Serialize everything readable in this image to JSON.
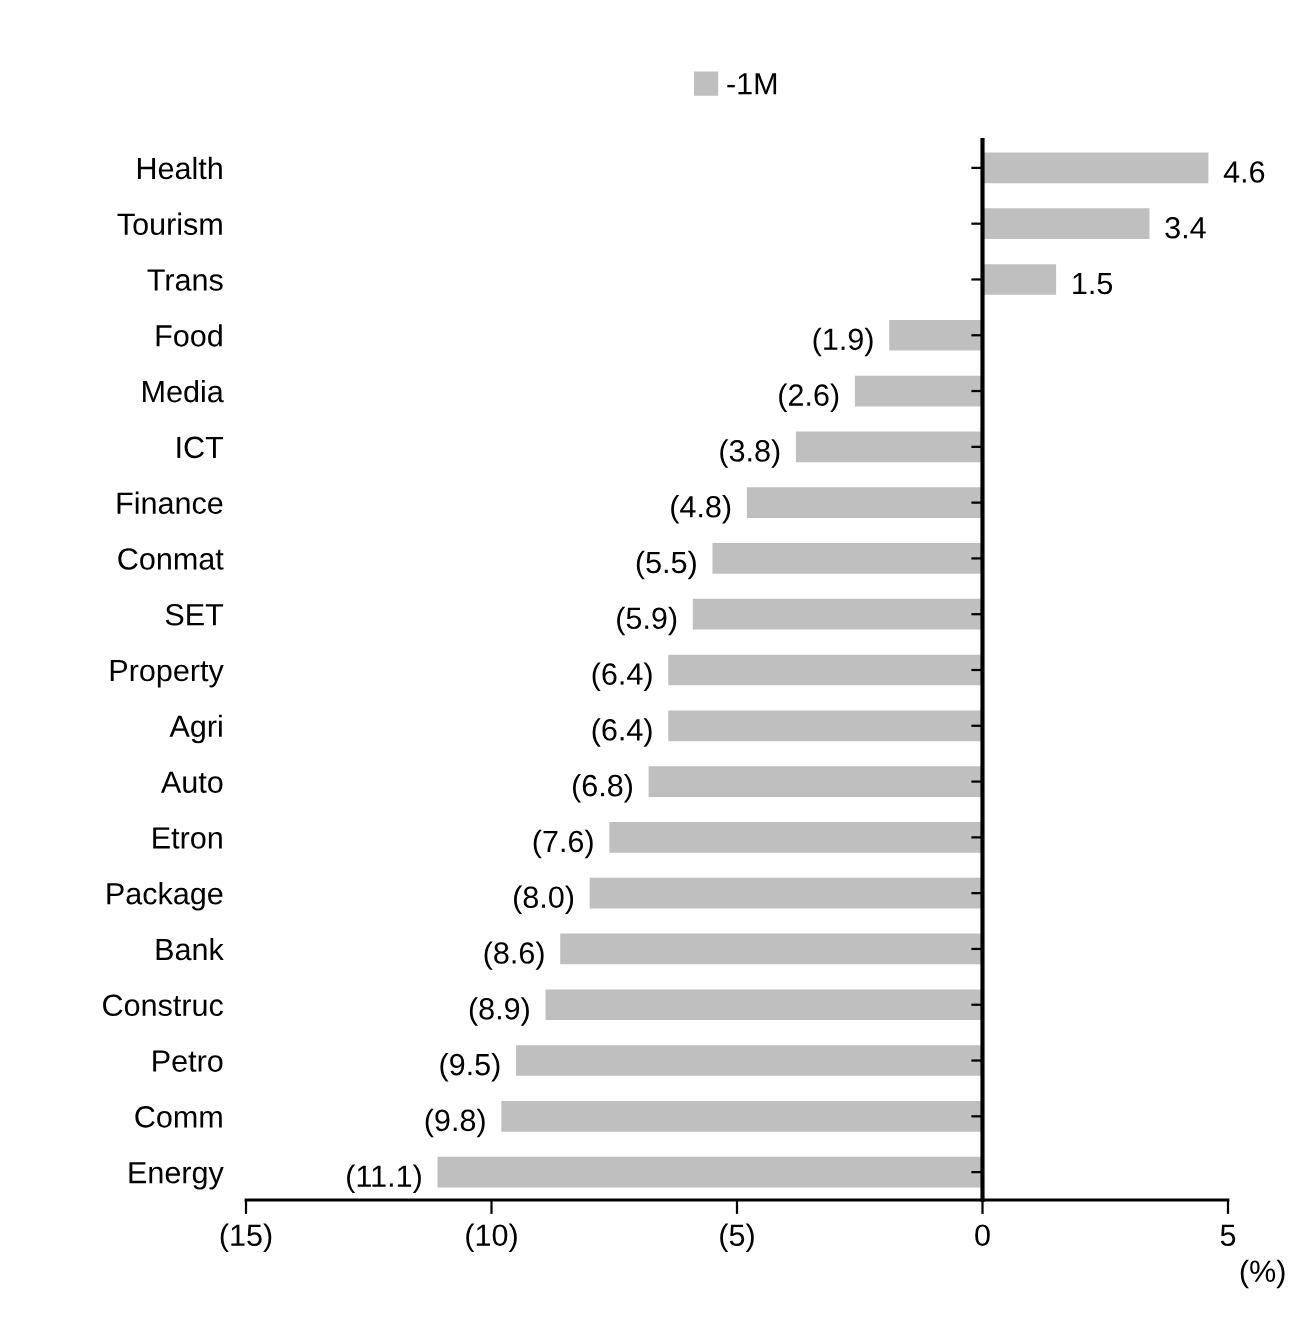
{
  "chart_data": {
    "type": "bar",
    "orientation": "horizontal",
    "categories": [
      "Health",
      "Tourism",
      "Trans",
      "Food",
      "Media",
      "ICT",
      "Finance",
      "Conmat",
      "SET",
      "Property",
      "Agri",
      "Auto",
      "Etron",
      "Package",
      "Bank",
      "Construc",
      "Petro",
      "Comm",
      "Energy"
    ],
    "series": [
      {
        "name": "-1M",
        "color": "#bfbfbf",
        "values": [
          4.6,
          3.4,
          1.5,
          -1.9,
          -2.6,
          -3.8,
          -4.8,
          -5.5,
          -5.9,
          -6.4,
          -6.4,
          -6.8,
          -7.6,
          -8.0,
          -8.6,
          -8.9,
          -9.5,
          -9.8,
          -11.1
        ],
        "value_labels": [
          "4.6",
          "3.4",
          "1.5",
          "(1.9)",
          "(2.6)",
          "(3.8)",
          "(4.8)",
          "(5.5)",
          "(5.9)",
          "(6.4)",
          "(6.4)",
          "(6.8)",
          "(7.6)",
          "(8.0)",
          "(8.6)",
          "(8.9)",
          "(9.5)",
          "(9.8)",
          "(11.1)"
        ]
      }
    ],
    "xlim": [
      -15,
      5
    ],
    "xticks": [
      {
        "value": -15,
        "label": "(15)"
      },
      {
        "value": -10,
        "label": "(10)"
      },
      {
        "value": -5,
        "label": "(5)"
      },
      0,
      5
    ],
    "annotations": [
      "(%)"
    ],
    "legend": "top"
  }
}
